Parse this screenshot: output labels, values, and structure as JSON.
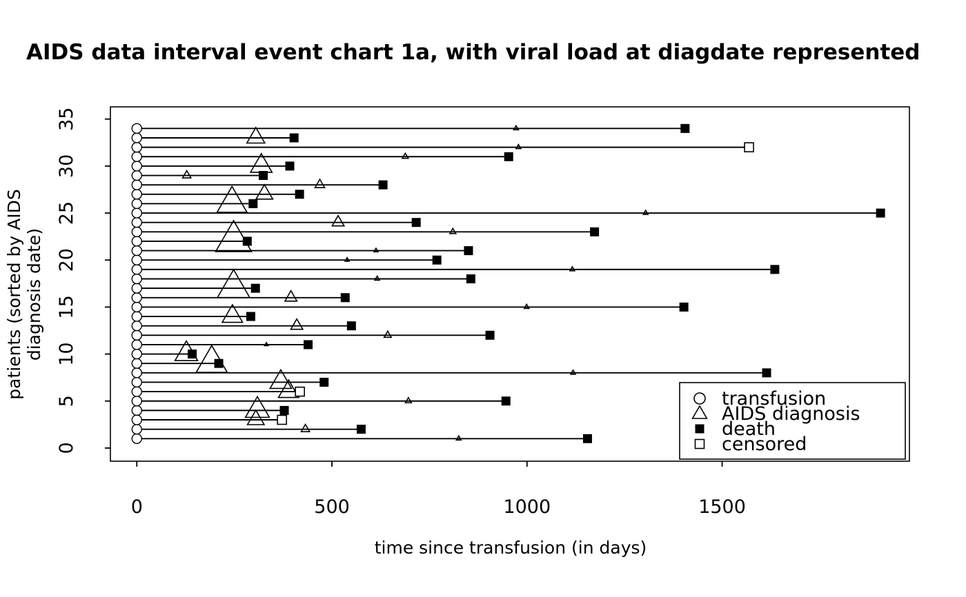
{
  "title": "AIDS data interval event chart 1a, with viral load at diagdate represented",
  "chart_data": {
    "type": "interval-event-chart",
    "xlabel": "time since transfusion (in days)",
    "ylabel": "patients (sorted by AIDS diagnosis date)",
    "x_ticks": [
      0,
      500,
      1000,
      1500
    ],
    "y_ticks": [
      0,
      5,
      10,
      15,
      20,
      25,
      30,
      35
    ],
    "xlim": [
      -67.7,
      1980
    ],
    "ylim": [
      -1.4,
      36.3
    ],
    "grid": false,
    "legend_position": "bottom-right-inside",
    "legend": [
      {
        "symbol": "open-circle",
        "label": "transfusion"
      },
      {
        "symbol": "open-triangle",
        "label": "AIDS diagnosis"
      },
      {
        "symbol": "filled-square",
        "label": "death"
      },
      {
        "symbol": "open-square",
        "label": "censored"
      }
    ],
    "marker_meaning": {
      "circle": "transfusion at day 0",
      "triangle": "AIDS diagnosis day, triangle size proportional to viral load at diagdate",
      "filled_square": "death day",
      "open_square": "censoring day"
    },
    "patients": [
      {
        "id": 1,
        "transfusion": 0,
        "aids_diagnosis": 825,
        "viral_load_size": 4,
        "end_day": 1155,
        "end_type": "death"
      },
      {
        "id": 2,
        "transfusion": 0,
        "aids_diagnosis": 432,
        "viral_load_size": 7,
        "end_day": 575,
        "end_type": "death"
      },
      {
        "id": 3,
        "transfusion": 0,
        "aids_diagnosis": 305,
        "viral_load_size": 14,
        "end_day": 372,
        "end_type": "censored"
      },
      {
        "id": 4,
        "transfusion": 0,
        "aids_diagnosis": 309,
        "viral_load_size": 20,
        "end_day": 378,
        "end_type": "death"
      },
      {
        "id": 5,
        "transfusion": 0,
        "aids_diagnosis": 696,
        "viral_load_size": 5,
        "end_day": 946,
        "end_type": "death"
      },
      {
        "id": 6,
        "transfusion": 0,
        "aids_diagnosis": 389,
        "viral_load_size": 17,
        "end_day": 418,
        "end_type": "censored"
      },
      {
        "id": 7,
        "transfusion": 0,
        "aids_diagnosis": 369,
        "viral_load_size": 18,
        "end_day": 480,
        "end_type": "death"
      },
      {
        "id": 8,
        "transfusion": 0,
        "aids_diagnosis": 1118,
        "viral_load_size": 4,
        "end_day": 1614,
        "end_type": "death"
      },
      {
        "id": 9,
        "transfusion": 0,
        "aids_diagnosis": 192,
        "viral_load_size": 26,
        "end_day": 210,
        "end_type": "death"
      },
      {
        "id": 10,
        "transfusion": 0,
        "aids_diagnosis": 127,
        "viral_load_size": 19,
        "end_day": 142,
        "end_type": "death"
      },
      {
        "id": 11,
        "transfusion": 0,
        "aids_diagnosis": 332,
        "viral_load_size": 3,
        "end_day": 439,
        "end_type": "death"
      },
      {
        "id": 12,
        "transfusion": 0,
        "aids_diagnosis": 643,
        "viral_load_size": 6,
        "end_day": 905,
        "end_type": "death"
      },
      {
        "id": 13,
        "transfusion": 0,
        "aids_diagnosis": 410,
        "viral_load_size": 10,
        "end_day": 550,
        "end_type": "death"
      },
      {
        "id": 14,
        "transfusion": 0,
        "aids_diagnosis": 245,
        "viral_load_size": 17,
        "end_day": 292,
        "end_type": "death"
      },
      {
        "id": 15,
        "transfusion": 0,
        "aids_diagnosis": 999,
        "viral_load_size": 4,
        "end_day": 1402,
        "end_type": "death"
      },
      {
        "id": 16,
        "transfusion": 0,
        "aids_diagnosis": 395,
        "viral_load_size": 10,
        "end_day": 534,
        "end_type": "death"
      },
      {
        "id": 17,
        "transfusion": 0,
        "aids_diagnosis": 248,
        "viral_load_size": 27,
        "end_day": 304,
        "end_type": "death"
      },
      {
        "id": 18,
        "transfusion": 0,
        "aids_diagnosis": 616,
        "viral_load_size": 4,
        "end_day": 856,
        "end_type": "death"
      },
      {
        "id": 19,
        "transfusion": 0,
        "aids_diagnosis": 1116,
        "viral_load_size": 4,
        "end_day": 1635,
        "end_type": "death"
      },
      {
        "id": 20,
        "transfusion": 0,
        "aids_diagnosis": 539,
        "viral_load_size": 3.5,
        "end_day": 769,
        "end_type": "death"
      },
      {
        "id": 21,
        "transfusion": 0,
        "aids_diagnosis": 613,
        "viral_load_size": 3.5,
        "end_day": 850,
        "end_type": "death"
      },
      {
        "id": 22,
        "transfusion": 0,
        "aids_diagnosis": 248,
        "viral_load_size": 30,
        "end_day": 283,
        "end_type": "death"
      },
      {
        "id": 23,
        "transfusion": 0,
        "aids_diagnosis": 810,
        "viral_load_size": 5,
        "end_day": 1173,
        "end_type": "death"
      },
      {
        "id": 24,
        "transfusion": 0,
        "aids_diagnosis": 516,
        "viral_load_size": 10,
        "end_day": 716,
        "end_type": "death"
      },
      {
        "id": 25,
        "transfusion": 0,
        "aids_diagnosis": 1304,
        "viral_load_size": 4,
        "end_day": 1906,
        "end_type": "death"
      },
      {
        "id": 26,
        "transfusion": 0,
        "aids_diagnosis": 244,
        "viral_load_size": 25,
        "end_day": 298,
        "end_type": "death"
      },
      {
        "id": 27,
        "transfusion": 0,
        "aids_diagnosis": 327,
        "viral_load_size": 14,
        "end_day": 417,
        "end_type": "death"
      },
      {
        "id": 28,
        "transfusion": 0,
        "aids_diagnosis": 469,
        "viral_load_size": 8,
        "end_day": 631,
        "end_type": "death"
      },
      {
        "id": 29,
        "transfusion": 0,
        "aids_diagnosis": 128,
        "viral_load_size": 7,
        "end_day": 324,
        "end_type": "death"
      },
      {
        "id": 30,
        "transfusion": 0,
        "aids_diagnosis": 319,
        "viral_load_size": 18,
        "end_day": 392,
        "end_type": "death"
      },
      {
        "id": 31,
        "transfusion": 0,
        "aids_diagnosis": 688,
        "viral_load_size": 5,
        "end_day": 953,
        "end_type": "death"
      },
      {
        "id": 32,
        "transfusion": 0,
        "aids_diagnosis": 978,
        "viral_load_size": 4,
        "end_day": 1569,
        "end_type": "censored"
      },
      {
        "id": 33,
        "transfusion": 0,
        "aids_diagnosis": 305,
        "viral_load_size": 15,
        "end_day": 403,
        "end_type": "death"
      },
      {
        "id": 34,
        "transfusion": 0,
        "aids_diagnosis": 972,
        "viral_load_size": 4,
        "end_day": 1405,
        "end_type": "death"
      }
    ],
    "colors": {
      "foreground": "#000000",
      "background": "#ffffff"
    }
  }
}
